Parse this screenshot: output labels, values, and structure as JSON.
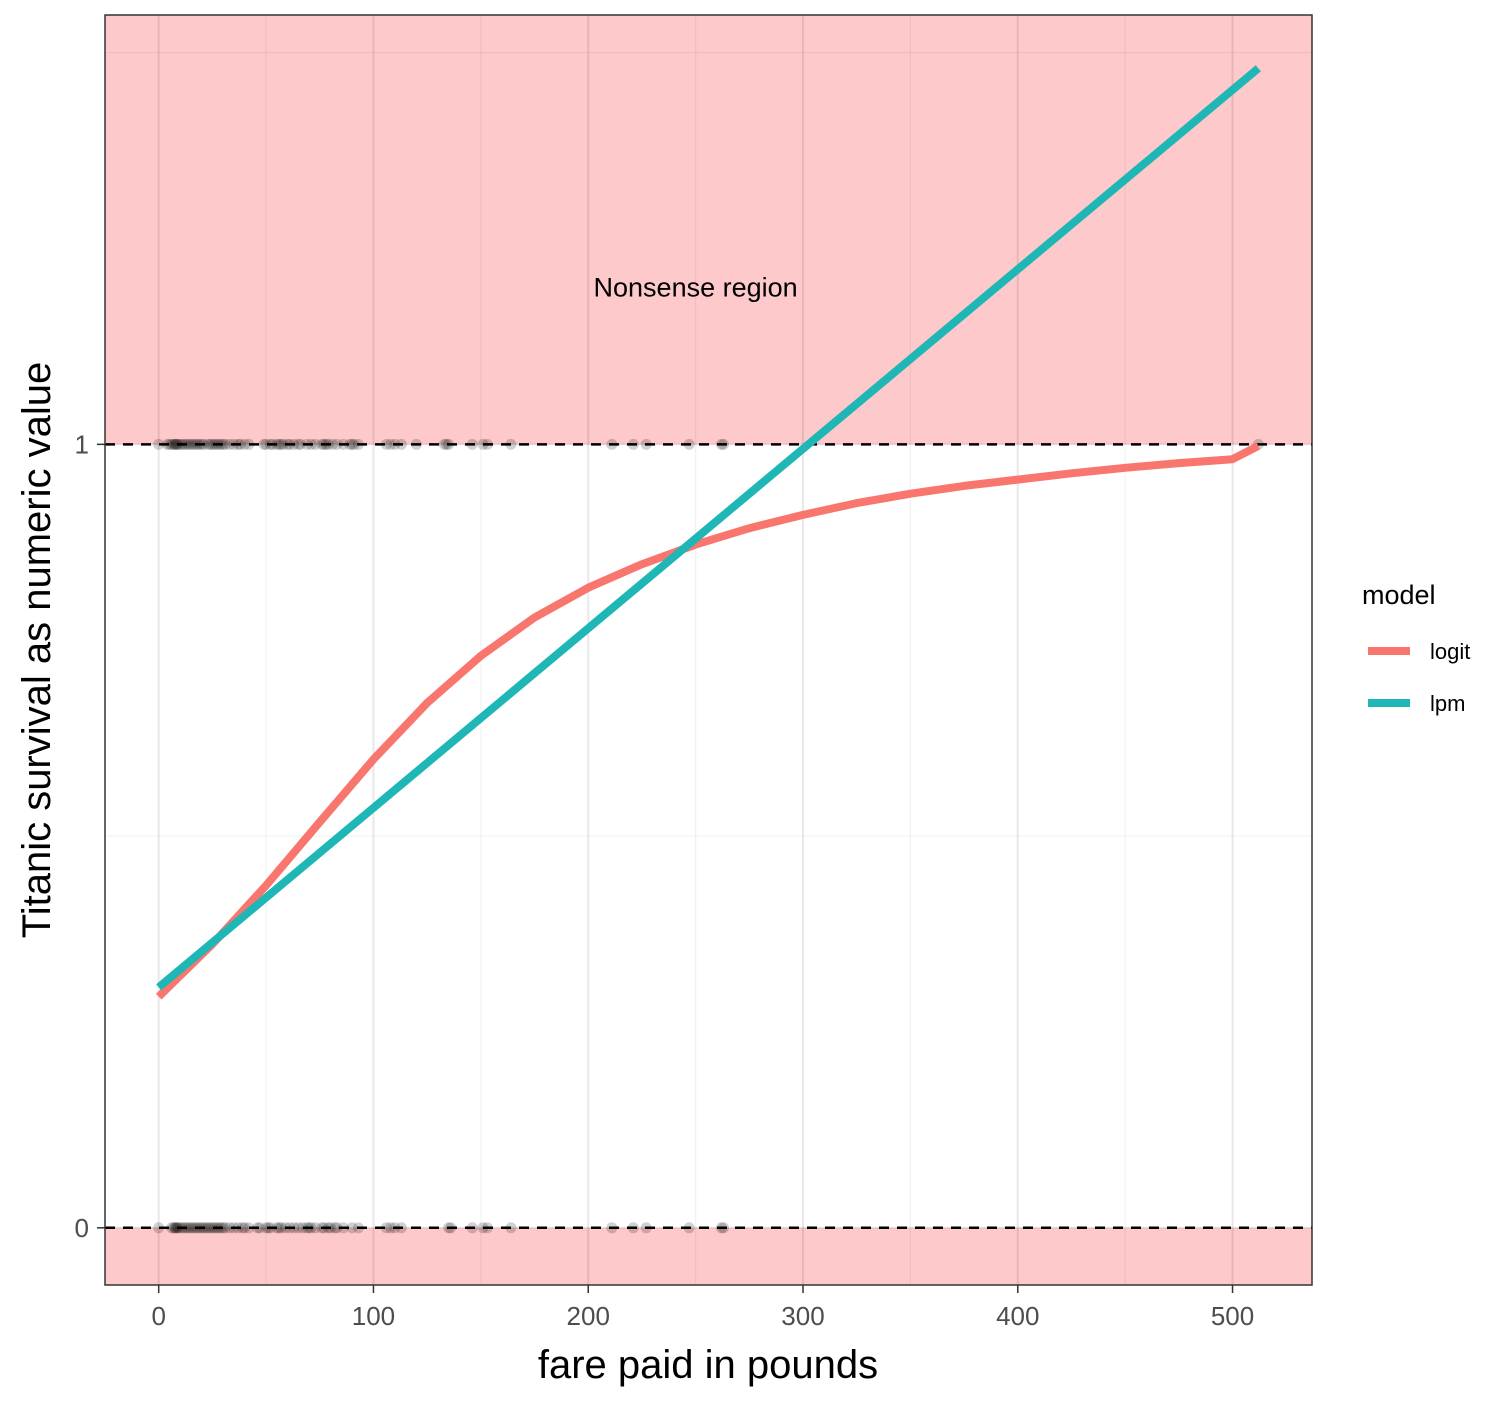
{
  "chart_data": {
    "type": "line",
    "title": "",
    "xlabel": "fare paid in pounds",
    "ylabel": "Titanic survival as numeric value",
    "xlim": [
      -25,
      537
    ],
    "ylim": [
      -0.073,
      1.548
    ],
    "x_ticks": [
      0,
      100,
      200,
      300,
      400,
      500
    ],
    "y_ticks": [
      0,
      1
    ],
    "grid": true,
    "legend": {
      "title": "model",
      "position": "right"
    },
    "shaded_regions": [
      {
        "y_from": 1,
        "y_to": 1.548,
        "color": "#fdc9ca"
      },
      {
        "y_from": -0.073,
        "y_to": 0,
        "color": "#fdc9ca"
      }
    ],
    "hlines": [
      {
        "y": 0,
        "style": "dashed",
        "color": "#000000"
      },
      {
        "y": 1,
        "style": "dashed",
        "color": "#000000"
      }
    ],
    "annotations": [
      {
        "text": "Nonsense region",
        "x": 250,
        "y": 1.2
      }
    ],
    "series": [
      {
        "name": "logit",
        "color": "#f8766d",
        "x": [
          0,
          25,
          50,
          75,
          100,
          125,
          150,
          175,
          200,
          225,
          250,
          275,
          300,
          325,
          350,
          375,
          400,
          425,
          450,
          475,
          500,
          512
        ],
        "y": [
          0.295,
          0.362,
          0.437,
          0.518,
          0.598,
          0.67,
          0.73,
          0.779,
          0.817,
          0.847,
          0.872,
          0.893,
          0.91,
          0.925,
          0.937,
          0.947,
          0.955,
          0.963,
          0.97,
          0.976,
          0.981,
          0.998
        ]
      },
      {
        "name": "lpm",
        "color": "#1fb7b6",
        "x": [
          0,
          512
        ],
        "y": [
          0.307,
          1.48
        ]
      }
    ],
    "points": {
      "color": "#000000",
      "survived_1": [
        0,
        4,
        5,
        6,
        7,
        7.5,
        8,
        8.5,
        9,
        10,
        11,
        12,
        13,
        14,
        15,
        16,
        17,
        18,
        19,
        20,
        21,
        23,
        24,
        25,
        26,
        27,
        28,
        29,
        30,
        31,
        33,
        35,
        37,
        38,
        40,
        42,
        49,
        50,
        52,
        53,
        55,
        56,
        57,
        58,
        60,
        61,
        63,
        65,
        66,
        69,
        71,
        73,
        76,
        77,
        78,
        79,
        81,
        83,
        86,
        89,
        90,
        91,
        93,
        106,
        108,
        110,
        113,
        120,
        133,
        134,
        135,
        146,
        151,
        153,
        164,
        211,
        221,
        227,
        247,
        262,
        263,
        512
      ],
      "survived_0": [
        0,
        6,
        7,
        7.5,
        8,
        8.5,
        9,
        10,
        11,
        12,
        13,
        14,
        15,
        16,
        17,
        18,
        19,
        20,
        21,
        22,
        23,
        24,
        25,
        26,
        27,
        28,
        29,
        30,
        31,
        33,
        35,
        37,
        39,
        40,
        42,
        46,
        47,
        50,
        51,
        52,
        55,
        56,
        57,
        59,
        61,
        63,
        65,
        67,
        69,
        70,
        71,
        73,
        76,
        77,
        79,
        80,
        82,
        83,
        86,
        90,
        93,
        106,
        108,
        110,
        113,
        135,
        136,
        146,
        151,
        153,
        164,
        211,
        221,
        227,
        247,
        262,
        263
      ]
    }
  }
}
